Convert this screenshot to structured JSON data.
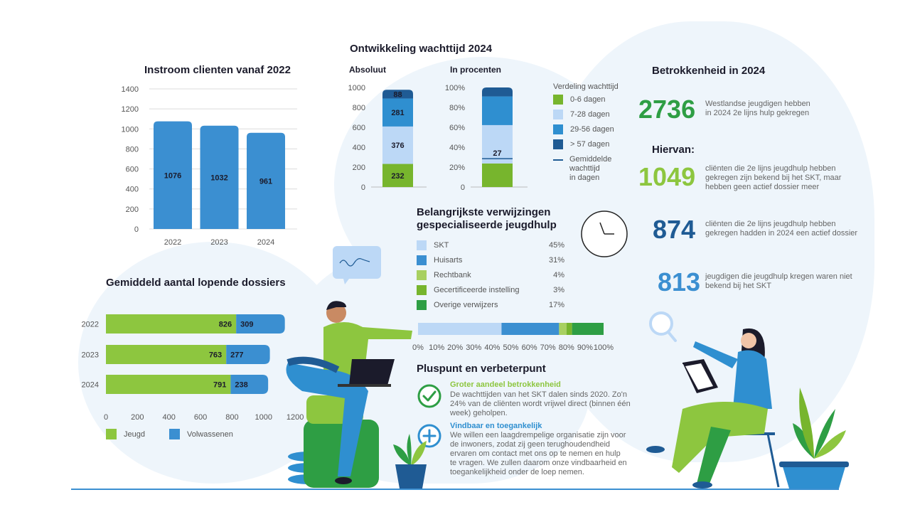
{
  "colors": {
    "blue_main": "#3b8fd1",
    "green_dark": "#2e9e44",
    "green_light": "#8dc63f",
    "blue_light": "#bcd8f6",
    "blue_dark": "#1f5b94",
    "blue_mid": "#2f8fd0",
    "green_mid": "#77b52d"
  },
  "titles": {
    "ontwikkeling": "Ontwikkeling wachttijd 2024",
    "instroom": "Instroom clienten vanaf 2022",
    "absoluut": "Absoluut",
    "procenten": "In procenten",
    "dossiers": "Gemiddeld aantal lopende dossiers",
    "verwijzingen_1": "Belangrijkste verwijzingen",
    "verwijzingen_2": "gespecialiseerde jeugdhulp",
    "betrokkenheid": "Betrokkenheid in 2024",
    "hiervan": "Hiervan:",
    "pluspunt": "Pluspunt en verbeterpunt"
  },
  "wacht_legend": {
    "title": "Verdeling wachttijd",
    "items": [
      "0-6 dagen",
      "7-28 dagen",
      "29-56 dagen",
      "> 57 dagen"
    ],
    "gem_1": "Gemiddelde",
    "gem_2": "wachttijd",
    "gem_3": "in dagen"
  },
  "stats": [
    {
      "value": "2736",
      "line1": "Westlandse jeugdigen hebben",
      "line2": "in 2024 2e lijns hulp gekregen",
      "line3": ""
    },
    {
      "value": "1049",
      "line1": "cliënten die 2e lijns jeugdhulp hebben",
      "line2": "gekregen zijn bekend bij het SKT, maar",
      "line3": "hebben geen actief dossier meer"
    },
    {
      "value": "874",
      "line1": "cliënten die 2e lijns jeugdhulp hebben",
      "line2": "gekregen hadden in 2024 een actief dossier",
      "line3": ""
    },
    {
      "value": "813",
      "line1": "jeugdigen die jeugdhulp kregen waren niet",
      "line2": "bekend bij het SKT",
      "line3": ""
    }
  ],
  "pluspunt": {
    "head1": "Groter aandeel betrokkenheid",
    "body1": [
      "De wachttijden van het SKT dalen sinds 2020. Zo'n",
      "24% van de cliënten wordt vrijwel direct (binnen één",
      "week) geholpen."
    ],
    "head2": "Vindbaar en toegankelijk",
    "body2": [
      "We willen een laagdrempelige organisatie zijn voor",
      "de inwoners, zodat zij geen terughoudendheid",
      "ervaren om contact met ons op te nemen en hulp",
      "te vragen. We zullen daarom onze vindbaarheid en",
      "toegankelijkheid onder de loep nemen."
    ]
  },
  "icons": {
    "check": "check-circle-icon",
    "plus": "plus-circle-icon",
    "clock": "clock-icon",
    "magnifier": "magnifier-icon",
    "speech": "speech-bubble-icon"
  },
  "chart_data": [
    {
      "type": "bar",
      "title": "Instroom clienten vanaf 2022",
      "categories": [
        "2022",
        "2023",
        "2024"
      ],
      "values": [
        1076,
        1032,
        961
      ],
      "ylim": [
        0,
        1400
      ],
      "yticks": [
        "0",
        "200",
        "400",
        "600",
        "800",
        "1000",
        "1200",
        "1400"
      ],
      "grid": true
    },
    {
      "type": "bar",
      "title": "Absoluut",
      "stacked": true,
      "ylim": [
        0,
        1000
      ],
      "yticks": [
        "0",
        "200",
        "400",
        "600",
        "800",
        "1000"
      ],
      "series": [
        {
          "name": "0-6 dagen",
          "values": [
            232
          ]
        },
        {
          "name": "7-28 dagen",
          "values": [
            376
          ]
        },
        {
          "name": "29-56 dagen",
          "values": [
            281
          ]
        },
        {
          "name": "> 57 dagen",
          "values": [
            88
          ]
        }
      ]
    },
    {
      "type": "bar",
      "title": "In procenten",
      "stacked": true,
      "ylim": [
        0,
        100
      ],
      "yticks": [
        "0",
        "20%",
        "40%",
        "60%",
        "80%",
        "100%"
      ],
      "series": [
        {
          "name": "0-6 dagen",
          "values": [
            23.7
          ]
        },
        {
          "name": "7-28 dagen",
          "values": [
            38.5
          ]
        },
        {
          "name": "29-56 dagen",
          "values": [
            28.8
          ]
        },
        {
          "name": "> 57 dagen",
          "values": [
            9.0
          ]
        }
      ],
      "gemiddelde_wachttijd": 27
    },
    {
      "type": "bar",
      "orientation": "horizontal",
      "title": "Gemiddeld aantal lopende dossiers",
      "categories": [
        "2022",
        "2023",
        "2024"
      ],
      "xlim": [
        0,
        1200
      ],
      "xticks": [
        "0",
        "200",
        "400",
        "600",
        "800",
        "1000",
        "1200"
      ],
      "series": [
        {
          "name": "Jeugd",
          "values": [
            826,
            763,
            791
          ]
        },
        {
          "name": "Volwassenen",
          "values": [
            309,
            277,
            238
          ]
        }
      ],
      "legend": "bottom"
    },
    {
      "type": "bar",
      "orientation": "horizontal",
      "stacked": true,
      "title": "Belangrijkste verwijzingen gespecialiseerde jeugdhulp",
      "labels": [
        "SKT",
        "Huisarts",
        "Rechtbank",
        "Gecertificeerde instelling",
        "Overige verwijzers"
      ],
      "values": [
        45,
        31,
        4,
        3,
        17
      ],
      "value_labels": [
        "45%",
        "31%",
        "4%",
        "3%",
        "17%"
      ],
      "xticks": [
        "0%",
        "10%",
        "20%",
        "30%",
        "40%",
        "50%",
        "60%",
        "70%",
        "80%",
        "90%",
        "100%"
      ]
    }
  ]
}
